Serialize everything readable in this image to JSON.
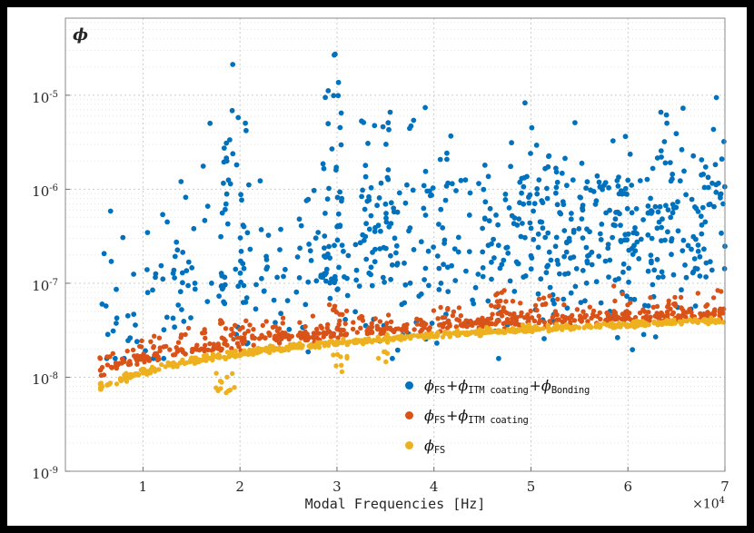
{
  "window": {
    "background": "#000000",
    "figure_background": "#ffffff"
  },
  "chart_data": {
    "type": "scatter",
    "title": "",
    "xlabel": "Modal Frequencies [Hz]",
    "ylabel": "ϕ",
    "x_unit_multiplier": 10000,
    "x_scale_label": {
      "base": "×10",
      "exp": "4"
    },
    "xlim": [
      0.2,
      7
    ],
    "ylim_exp": [
      -9,
      -4.18
    ],
    "x_ticks": [
      {
        "value": 1,
        "label": "1"
      },
      {
        "value": 2,
        "label": "2"
      },
      {
        "value": 3,
        "label": "3"
      },
      {
        "value": 4,
        "label": "4"
      },
      {
        "value": 5,
        "label": "5"
      },
      {
        "value": 6,
        "label": "6"
      },
      {
        "value": 7,
        "label": "7"
      }
    ],
    "y_ticks": [
      {
        "exp": -9,
        "base": "10",
        "sup": "-9"
      },
      {
        "exp": -8,
        "base": "10",
        "sup": "-8"
      },
      {
        "exp": -7,
        "base": "10",
        "sup": "-7"
      },
      {
        "exp": -6,
        "base": "10",
        "sup": "-6"
      },
      {
        "exp": -5,
        "base": "10",
        "sup": "-5"
      }
    ],
    "grid": {
      "x_major": true,
      "y_major": true,
      "y_minor": true,
      "major_color": "#cccccc",
      "minor_color": "#e4e4e4",
      "style": "dashed"
    },
    "axes": {
      "box_color": "#8a8a8a",
      "tick_color": "#6f6f6f"
    },
    "legend": {
      "position": "inside-lower-right",
      "entries": [
        {
          "color": "#0072BD",
          "text": "ϕ_FS+ϕ_ITM coating+ϕ_Bonding",
          "parts": [
            {
              "main": "ϕ",
              "sub": "FS"
            },
            {
              "main": "+ϕ",
              "sub": "ITM coating"
            },
            {
              "main": "+ϕ",
              "sub": "Bonding"
            }
          ]
        },
        {
          "color": "#D95319",
          "text": "ϕ_FS+ϕ_ITM coating",
          "parts": [
            {
              "main": "ϕ",
              "sub": "FS"
            },
            {
              "main": "+ϕ",
              "sub": "ITM coating"
            }
          ]
        },
        {
          "color": "#EDB120",
          "text": "ϕ_FS",
          "parts": [
            {
              "main": "ϕ",
              "sub": "FS"
            }
          ]
        }
      ]
    },
    "seed": 20240817,
    "series": [
      {
        "name": "phi-FS-plus-ITM-coating-plus-Bonding",
        "color": "#0072BD",
        "marker_radius": 2.9,
        "gen": {
          "count": 620,
          "x_range": [
            0.5,
            7.0
          ],
          "x_weight": "linear",
          "trend": {
            "ref": 1.0,
            "base_exp": -7.25,
            "slope": 1.05
          },
          "sigma": 0.5,
          "up_tail": 0,
          "tail_pow": 4,
          "clip": [
            -7.8,
            -4.4
          ],
          "clusters": [
            {
              "x": [
                1.8,
                1.93
              ],
              "count": 26,
              "exp": [
                -7.2,
                -4.35
              ],
              "pow": 1.3
            },
            {
              "x": [
                1.95,
                2.1
              ],
              "count": 14,
              "exp": [
                -7.3,
                -5.15
              ],
              "pow": 1.2
            },
            {
              "x": [
                2.85,
                3.05
              ],
              "count": 30,
              "exp": [
                -7.0,
                -4.5
              ],
              "pow": 1.3
            },
            {
              "x": [
                3.25,
                3.55
              ],
              "count": 24,
              "exp": [
                -6.8,
                -4.7
              ],
              "pow": 1.3
            },
            {
              "x": [
                1.2,
                1.45
              ],
              "count": 12,
              "exp": [
                -7.6,
                -5.9
              ],
              "pow": 1.2
            },
            {
              "x": [
                0.55,
                0.95
              ],
              "count": 14,
              "exp": [
                -7.75,
                -6.6
              ],
              "pow": 1.0
            },
            {
              "x": [
                3.7,
                4.3
              ],
              "count": 12,
              "exp": [
                -6.2,
                -4.9
              ],
              "pow": 1.4
            },
            {
              "x": [
                4.9,
                5.6
              ],
              "count": 10,
              "exp": [
                -6.3,
                -5.0
              ],
              "pow": 1.4
            },
            {
              "x": [
                6.2,
                6.45
              ],
              "count": 8,
              "exp": [
                -6.3,
                -4.6
              ],
              "pow": 1.5
            },
            {
              "x": [
                6.85,
                7.0
              ],
              "count": 6,
              "exp": [
                -6.0,
                -4.55
              ],
              "pow": 1.5
            }
          ]
        }
      },
      {
        "name": "phi-FS-plus-ITM-coating",
        "color": "#D95319",
        "marker_radius": 2.7,
        "gen": {
          "count": 560,
          "x_range": [
            0.55,
            7.0
          ],
          "x_weight": "uniform",
          "trend": {
            "ref": 0.6,
            "base_exp": -7.92,
            "slope": 0.55
          },
          "sigma": 0.03,
          "up_tail": 0.22,
          "tail_pow": 5,
          "clip": [
            -8.0,
            -6.95
          ],
          "clusters": [
            {
              "x": [
                1.78,
                2.05
              ],
              "count": 12,
              "exp": [
                -7.72,
                -7.38
              ],
              "pow": 1.2
            },
            {
              "x": [
                2.9,
                3.1
              ],
              "count": 10,
              "exp": [
                -7.5,
                -7.15
              ],
              "pow": 1.2
            },
            {
              "x": [
                4.55,
                4.75
              ],
              "count": 8,
              "exp": [
                -7.35,
                -7.0
              ],
              "pow": 1.2
            },
            {
              "x": [
                5.1,
                5.3
              ],
              "count": 8,
              "exp": [
                -7.4,
                -7.05
              ],
              "pow": 1.2
            },
            {
              "x": [
                5.85,
                6.05
              ],
              "count": 8,
              "exp": [
                -7.38,
                -7.0
              ],
              "pow": 1.2
            },
            {
              "x": [
                6.4,
                6.6
              ],
              "count": 8,
              "exp": [
                -7.38,
                -7.02
              ],
              "pow": 1.2
            },
            {
              "x": [
                6.88,
                7.0
              ],
              "count": 6,
              "exp": [
                -7.33,
                -7.0
              ],
              "pow": 1.2
            }
          ]
        }
      },
      {
        "name": "phi-FS",
        "color": "#EDB120",
        "marker_radius": 2.7,
        "gen": {
          "count": 620,
          "x_range": [
            0.55,
            7.0
          ],
          "x_weight": "uniform",
          "trend": {
            "ref": 0.6,
            "base_exp": -8.1,
            "slope": 0.655
          },
          "sigma": 0.012,
          "up_tail": 0.05,
          "tail_pow": 6,
          "clip": [
            -8.22,
            -7.36
          ],
          "clusters": [
            {
              "x": [
                1.75,
                1.95
              ],
              "count": 12,
              "exp": [
                -8.17,
                -7.93
              ],
              "pow": 1.0
            },
            {
              "x": [
                2.95,
                3.15
              ],
              "count": 8,
              "exp": [
                -7.95,
                -7.75
              ],
              "pow": 1.0
            },
            {
              "x": [
                3.4,
                3.55
              ],
              "count": 5,
              "exp": [
                -7.88,
                -7.7
              ],
              "pow": 1.0
            }
          ]
        }
      }
    ]
  }
}
